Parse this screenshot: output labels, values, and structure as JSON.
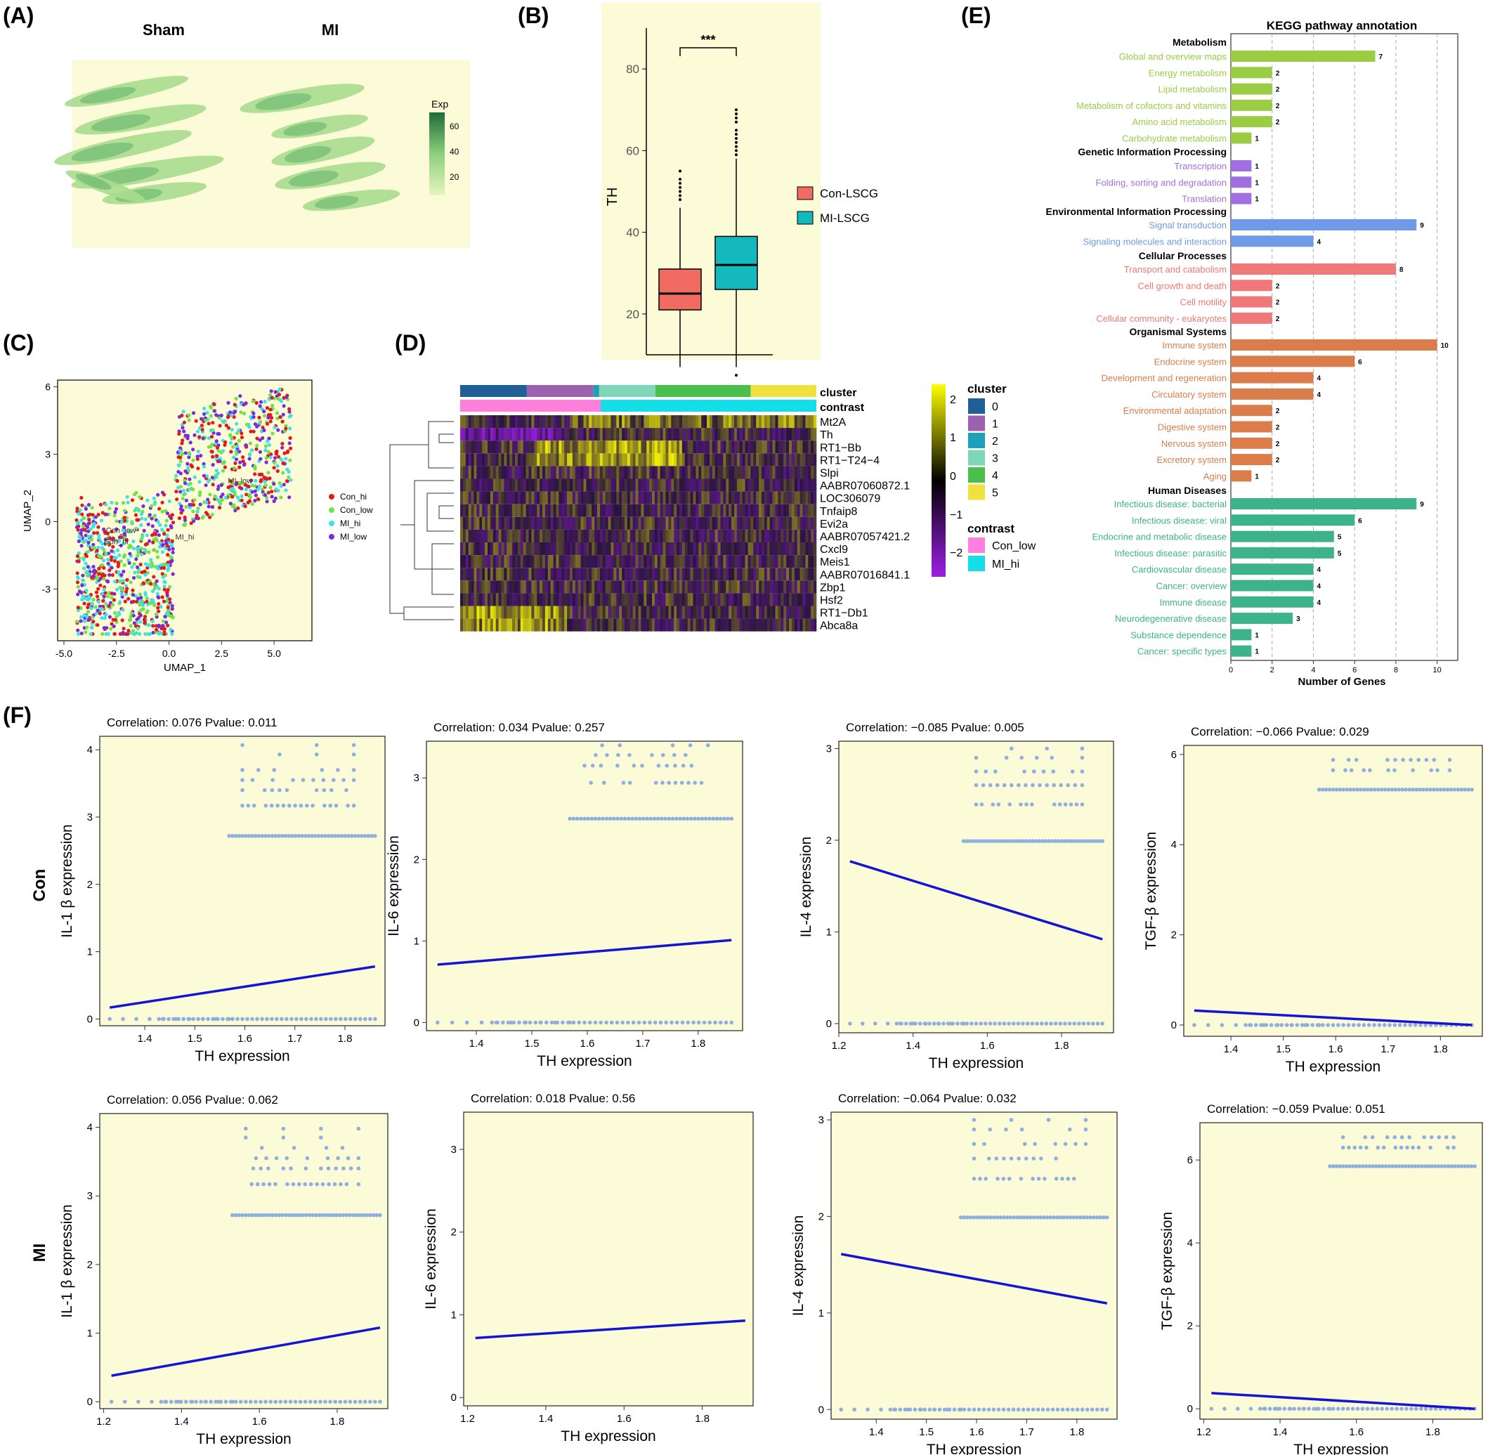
{
  "panel_labels": {
    "A": "(A)",
    "B": "(B)",
    "C": "(C)",
    "D": "(D)",
    "E": "(E)",
    "F": "(F)"
  },
  "colors": {
    "panel_bg": "#fbfbd7",
    "con_lscg": "#f26b63",
    "mi_lscg": "#14b9bd",
    "fit_line": "#1414d2",
    "points": "#8fafe0",
    "heat_low": "#9e1fe6",
    "heat_mid": "#000000",
    "heat_high": "#ffff00"
  },
  "panel_a": {
    "title_left": "Sham",
    "title_right": "MI",
    "legend_title": "Exp",
    "legend_ticks": [
      "60",
      "40",
      "20"
    ]
  },
  "panel_c": {
    "xlabel": "UMAP_1",
    "ylabel": "UMAP_2",
    "xticks": [
      "-5.0",
      "-2.5",
      "0.0",
      "2.5",
      "5.0"
    ],
    "yticks": [
      "6",
      "3",
      "0",
      "-3"
    ],
    "legend": [
      {
        "label": "Con_hi",
        "color": "#e31a1c"
      },
      {
        "label": "Con_low",
        "color": "#6fe34a"
      },
      {
        "label": "MI_hi",
        "color": "#3fe0f0"
      },
      {
        "label": "MI_low",
        "color": "#7b2ae0"
      }
    ],
    "cluster_labels": [
      "MI_low",
      "Con_low",
      "Con_hi",
      "MI_hi"
    ]
  },
  "panel_d": {
    "annotation_rows": [
      "cluster",
      "contrast"
    ],
    "genes": [
      "Mt2A",
      "Th",
      "RT1−Bb",
      "RT1−T24−4",
      "Slpi",
      "AABR07060872.1",
      "LOC306079",
      "Tnfaip8",
      "Evi2a",
      "AABR07057421.2",
      "Cxcl9",
      "Meis1",
      "AABR07016841.1",
      "Zbp1",
      "Hsf2",
      "RT1−Db1",
      "Abca8a"
    ],
    "scale_ticks": [
      "2",
      "1",
      "0",
      "−1",
      "−2"
    ],
    "cluster_legend_title": "cluster",
    "clusters": [
      {
        "label": "0",
        "color": "#1f5e96"
      },
      {
        "label": "1",
        "color": "#9b62b0"
      },
      {
        "label": "2",
        "color": "#1fa0b8"
      },
      {
        "label": "3",
        "color": "#7fd6b8"
      },
      {
        "label": "4",
        "color": "#4bbf4b"
      },
      {
        "label": "5",
        "color": "#f0e040"
      }
    ],
    "contrast_legend_title": "contrast",
    "contrasts": [
      {
        "label": "Con_low",
        "color": "#ff80dc"
      },
      {
        "label": "MI_hi",
        "color": "#14dfe8"
      }
    ]
  },
  "chart_data": [
    {
      "type": "box",
      "panel": "B",
      "ylabel": "TH",
      "ylim": [
        10,
        90
      ],
      "yticks": [
        20,
        40,
        60,
        80
      ],
      "significance": "***",
      "series": [
        {
          "name": "Con-LSCG",
          "q1": 21,
          "median": 25,
          "q3": 31,
          "whisker_low": 7,
          "whisker_high": 46,
          "outliers": [
            48,
            49,
            50,
            51,
            52,
            53,
            55
          ]
        },
        {
          "name": "MI-LSCG",
          "q1": 26,
          "median": 32,
          "q3": 39,
          "whisker_low": 7,
          "whisker_high": 58,
          "outliers": [
            5,
            59,
            60,
            61,
            62,
            63,
            64,
            65,
            67,
            68,
            69,
            70
          ]
        }
      ]
    },
    {
      "type": "bar",
      "panel": "E",
      "title": "KEGG pathway annotation",
      "xlabel": "Number of Genes",
      "xlim": [
        0,
        11
      ],
      "xticks": [
        0,
        2,
        4,
        6,
        8,
        10
      ],
      "groups": [
        {
          "name": "Metabolism",
          "color": "#9acd44",
          "items": [
            {
              "label": "Global and overview maps",
              "value": 7
            },
            {
              "label": "Energy metabolism",
              "value": 2
            },
            {
              "label": "Lipid metabolism",
              "value": 2
            },
            {
              "label": "Metabolism of cofactors and vitamins",
              "value": 2
            },
            {
              "label": "Amino acid metabolism",
              "value": 2
            },
            {
              "label": "Carbohydrate metabolism",
              "value": 1
            }
          ]
        },
        {
          "name": "Genetic Information Processing",
          "color": "#a070e0",
          "items": [
            {
              "label": "Transcription",
              "value": 1
            },
            {
              "label": "Folding, sorting and degradation",
              "value": 1
            },
            {
              "label": "Translation",
              "value": 1
            }
          ]
        },
        {
          "name": "Environmental Information Processing",
          "color": "#6f9ae8",
          "items": [
            {
              "label": "Signal transduction",
              "value": 9
            },
            {
              "label": "Signaling molecules and interaction",
              "value": 4
            }
          ]
        },
        {
          "name": "Cellular Processes",
          "color": "#f07878",
          "items": [
            {
              "label": "Transport and catabolism",
              "value": 8
            },
            {
              "label": "Cell growth and death",
              "value": 2
            },
            {
              "label": "Cell motility",
              "value": 2
            },
            {
              "label": "Cellular community - eukaryotes",
              "value": 2
            }
          ]
        },
        {
          "name": "Organismal Systems",
          "color": "#db7d4a",
          "items": [
            {
              "label": "Immune system",
              "value": 10
            },
            {
              "label": "Endocrine system",
              "value": 6
            },
            {
              "label": "Development and regeneration",
              "value": 4
            },
            {
              "label": "Circulatory system",
              "value": 4
            },
            {
              "label": "Environmental adaptation",
              "value": 2
            },
            {
              "label": "Digestive system",
              "value": 2
            },
            {
              "label": "Nervous system",
              "value": 2
            },
            {
              "label": "Excretory system",
              "value": 2
            },
            {
              "label": "Aging",
              "value": 1
            }
          ]
        },
        {
          "name": "Human Diseases",
          "color": "#3db38a",
          "items": [
            {
              "label": "Infectious disease: bacterial",
              "value": 9
            },
            {
              "label": "Infectious disease: viral",
              "value": 6
            },
            {
              "label": "Endocrine and metabolic disease",
              "value": 5
            },
            {
              "label": "Infectious disease: parasitic",
              "value": 5
            },
            {
              "label": "Cardiovascular disease",
              "value": 4
            },
            {
              "label": "Cancer: overview",
              "value": 4
            },
            {
              "label": "Immune disease",
              "value": 4
            },
            {
              "label": "Neurodegenerative disease",
              "value": 3
            },
            {
              "label": "Substance dependence",
              "value": 1
            },
            {
              "label": "Cancer: specific types",
              "value": 1
            }
          ]
        }
      ]
    },
    {
      "type": "scatter",
      "panel": "F",
      "row": "Con",
      "gene": "IL-1 β",
      "title": "Correlation: 0.076   Pvalue: 0.011",
      "xlabel": "TH expression",
      "ylabel": "IL-1 β expression",
      "xlim": [
        1.31,
        1.88
      ],
      "ylim": [
        -0.1,
        4.2
      ],
      "xticks": [
        "1.4",
        "1.5",
        "1.6",
        "1.7",
        "1.8"
      ],
      "yticks": [
        "0",
        "1",
        "2",
        "3",
        "4"
      ],
      "fit": {
        "x": [
          1.33,
          1.86
        ],
        "y": [
          0.17,
          0.78
        ]
      },
      "levels": [
        0,
        2.72,
        3.17,
        3.4,
        3.55,
        3.7,
        3.93,
        4.07
      ],
      "xmin": 1.33,
      "xmax": 1.86
    },
    {
      "type": "scatter",
      "panel": "F",
      "row": "Con",
      "gene": "IL-6",
      "title": "Correlation: 0.034   Pvalue: 0.257",
      "xlabel": "TH expression",
      "ylabel": "IL-6 expression",
      "xlim": [
        1.31,
        1.88
      ],
      "ylim": [
        -0.1,
        3.45
      ],
      "xticks": [
        "1.4",
        "1.5",
        "1.6",
        "1.7",
        "1.8"
      ],
      "yticks": [
        "0",
        "1",
        "2",
        "3"
      ],
      "fit": {
        "x": [
          1.33,
          1.86
        ],
        "y": [
          0.71,
          1.01
        ]
      },
      "levels": [
        0,
        2.5,
        2.94,
        3.15,
        3.28,
        3.4
      ],
      "xmin": 1.33,
      "xmax": 1.86
    },
    {
      "type": "scatter",
      "panel": "F",
      "row": "Con",
      "gene": "IL-4",
      "title": "Correlation: −0.085   Pvalue: 0.005",
      "xlabel": "TH expression",
      "ylabel": "IL-4 expression",
      "xlim": [
        1.2,
        1.94
      ],
      "ylim": [
        -0.1,
        3.08
      ],
      "xticks": [
        "1.2",
        "1.4",
        "1.6",
        "1.8"
      ],
      "yticks": [
        "0",
        "1",
        "2",
        "3"
      ],
      "fit": {
        "x": [
          1.23,
          1.91
        ],
        "y": [
          1.77,
          0.92
        ]
      },
      "levels": [
        0,
        1.99,
        2.39,
        2.6,
        2.75,
        2.9,
        3.0
      ],
      "xmin": 1.23,
      "xmax": 1.91
    },
    {
      "type": "scatter",
      "panel": "F",
      "row": "Con",
      "gene": "TGF-β",
      "title": "Correlation: −0.066   Pvalue: 0.029",
      "xlabel": "TH expression",
      "ylabel": "TGF-β expression",
      "xlim": [
        1.31,
        1.88
      ],
      "ylim": [
        -0.25,
        6.2
      ],
      "xticks": [
        "1.4",
        "1.5",
        "1.6",
        "1.7",
        "1.8"
      ],
      "yticks": [
        "0",
        "2",
        "4",
        "6"
      ],
      "fit": {
        "x": [
          1.33,
          1.86
        ],
        "y": [
          0.32,
          0.0
        ]
      },
      "levels": [
        0,
        5.22,
        5.65,
        5.88
      ],
      "xmin": 1.33,
      "xmax": 1.86
    },
    {
      "type": "scatter",
      "panel": "F",
      "row": "MI",
      "gene": "IL-1 β",
      "title": "Correlation: 0.056   Pvalue: 0.062",
      "xlabel": "TH expression",
      "ylabel": "IL-1 β expression",
      "xlim": [
        1.19,
        1.93
      ],
      "ylim": [
        -0.1,
        4.2
      ],
      "xticks": [
        "1.2",
        "1.4",
        "1.6",
        "1.8"
      ],
      "yticks": [
        "0",
        "1",
        "2",
        "3",
        "4"
      ],
      "fit": {
        "x": [
          1.22,
          1.91
        ],
        "y": [
          0.38,
          1.08
        ]
      },
      "levels": [
        0,
        2.72,
        3.17,
        3.4,
        3.55,
        3.7,
        3.85,
        3.98
      ],
      "xmin": 1.22,
      "xmax": 1.91
    },
    {
      "type": "scatter",
      "panel": "F",
      "row": "MI",
      "gene": "IL-6",
      "title": "Correlation: 0.018   Pvalue: 0.56",
      "xlabel": "TH expression",
      "ylabel": "IL-6 expression",
      "xlim": [
        1.19,
        1.93
      ],
      "ylim": [
        -0.1,
        3.45
      ],
      "xticks": [
        "1.2",
        "1.4",
        "1.6",
        "1.8"
      ],
      "yticks": [
        "0",
        "1",
        "2",
        "3"
      ],
      "fit": {
        "x": [
          1.22,
          1.91
        ],
        "y": [
          0.72,
          0.93
        ]
      },
      "levels": [],
      "xmin": 1.22,
      "xmax": 1.91
    },
    {
      "type": "scatter",
      "panel": "F",
      "row": "MI",
      "gene": "IL-4",
      "title": "Correlation: −0.064   Pvalue: 0.032",
      "xlabel": "TH expression",
      "ylabel": "IL-4 expression",
      "xlim": [
        1.31,
        1.88
      ],
      "ylim": [
        -0.1,
        3.08
      ],
      "xticks": [
        "1.4",
        "1.5",
        "1.6",
        "1.7",
        "1.8"
      ],
      "yticks": [
        "0",
        "1",
        "2",
        "3"
      ],
      "fit": {
        "x": [
          1.33,
          1.86
        ],
        "y": [
          1.61,
          1.1
        ]
      },
      "levels": [
        0,
        1.99,
        2.39,
        2.6,
        2.75,
        2.9,
        3.0
      ],
      "xmin": 1.33,
      "xmax": 1.86
    },
    {
      "type": "scatter",
      "panel": "F",
      "row": "MI",
      "gene": "TGF-β",
      "title": "Correlation: −0.059   Pvalue: 0.051",
      "xlabel": "TH expression",
      "ylabel": "TGF-β expression",
      "xlim": [
        1.19,
        1.93
      ],
      "ylim": [
        -0.25,
        6.9
      ],
      "xticks": [
        "1.2",
        "1.4",
        "1.6",
        "1.8"
      ],
      "yticks": [
        "0",
        "2",
        "4",
        "6"
      ],
      "fit": {
        "x": [
          1.22,
          1.91
        ],
        "y": [
          0.38,
          0.0
        ]
      },
      "levels": [
        0,
        5.85,
        6.3,
        6.55
      ],
      "xmin": 1.22,
      "xmax": 1.91
    }
  ],
  "row_labels": [
    "Con",
    "MI"
  ]
}
